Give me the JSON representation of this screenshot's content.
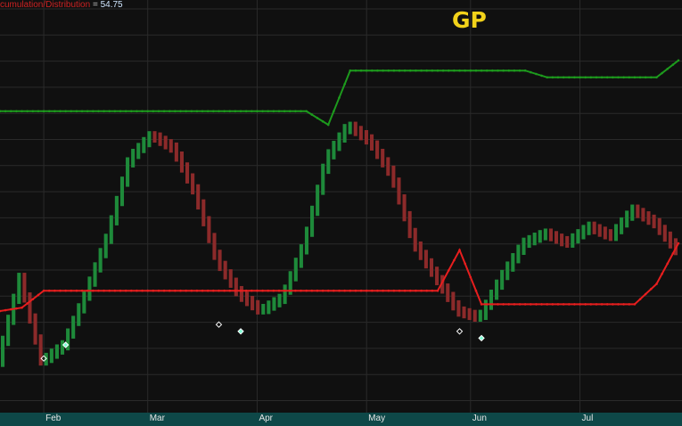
{
  "symbol": "GP",
  "indicator": {
    "name": "cumulation/Distribution",
    "equals": "=",
    "value": "54.75"
  },
  "time_axis": {
    "months": [
      "Feb",
      "Mar",
      "Apr",
      "May",
      "Jun",
      "Jul"
    ]
  },
  "colors": {
    "background": "#101010",
    "grid": "#2a2a2a",
    "upper_band": "#1d9a1d",
    "lower_band": "#e61e1e",
    "up_bar": "#1e8a3a",
    "down_bar": "#8c2a2a",
    "marker_white": "#ffffff",
    "marker_cyan": "#7fffd4",
    "time_axis": "#0e4848",
    "symbol": "#f2d21a"
  },
  "chart_data": {
    "type": "line",
    "title": "GP",
    "xlabel": "",
    "ylabel": "",
    "x": [
      0,
      4,
      8,
      12,
      16,
      20,
      24,
      28,
      32,
      36,
      40,
      44,
      48,
      52,
      56,
      60,
      64,
      68,
      72,
      76,
      80,
      84,
      88,
      92,
      96,
      100,
      104,
      108,
      112,
      116,
      120,
      124
    ],
    "x_month_ticks": {
      "Feb": 8,
      "Mar": 27,
      "Apr": 47,
      "May": 67,
      "Jun": 86,
      "Jul": 106
    },
    "ylim": [
      0,
      100
    ],
    "grid": true,
    "series": [
      {
        "values": [
          5,
          30,
          5,
          10,
          25,
          42,
          65,
          72,
          68,
          55,
          35,
          25,
          20,
          24,
          40,
          65,
          75,
          70,
          60,
          40,
          30,
          20,
          18,
          30,
          40,
          43,
          40,
          45,
          42,
          50,
          46,
          38
        ]
      },
      {
        "values": [
          79,
          79,
          79,
          79,
          79,
          79,
          79,
          79,
          79,
          79,
          79,
          79,
          79,
          79,
          79,
          75,
          91,
          91,
          91,
          91,
          91,
          91,
          91,
          91,
          91,
          89,
          89,
          89,
          89,
          89,
          89,
          94
        ]
      },
      {
        "values": [
          20,
          21,
          26,
          26,
          26,
          26,
          26,
          26,
          26,
          26,
          26,
          26,
          26,
          26,
          26,
          26,
          26,
          26,
          26,
          26,
          26,
          38,
          22,
          22,
          22,
          22,
          22,
          22,
          22,
          22,
          28,
          40
        ]
      }
    ]
  }
}
